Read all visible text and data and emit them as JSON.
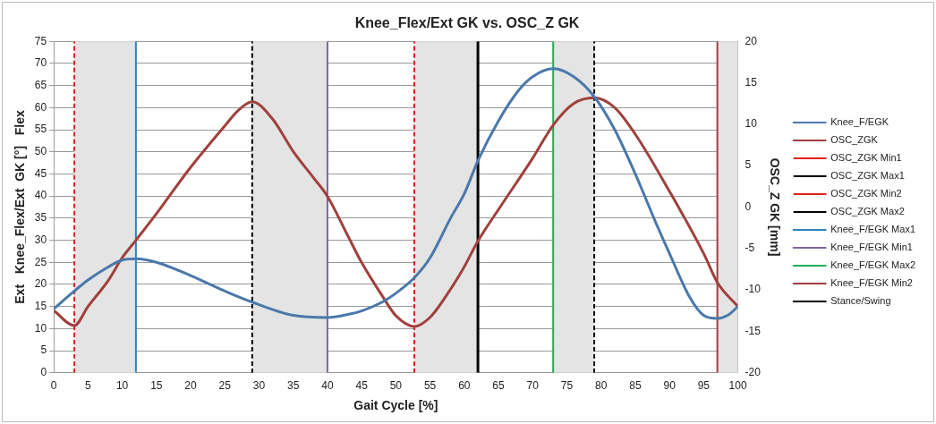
{
  "chart_data": {
    "type": "line",
    "title": "Knee_Flex/Ext GK vs. OSC_Z GK",
    "xlabel": "Gait Cycle [%]",
    "ylabel": "Ext   Knee_Flex/Ext  GK [°]   Flex",
    "y2label": "OSC_Z GK [mm]",
    "xlim": [
      0,
      100
    ],
    "xticks": [
      0,
      5,
      10,
      15,
      20,
      25,
      30,
      35,
      40,
      45,
      50,
      55,
      60,
      65,
      70,
      75,
      80,
      85,
      90,
      95,
      100
    ],
    "ylim": [
      0,
      75
    ],
    "yticks": [
      0,
      5,
      10,
      15,
      20,
      25,
      30,
      35,
      40,
      45,
      50,
      55,
      60,
      65,
      70,
      75
    ],
    "y2lim": [
      -20,
      20
    ],
    "y2ticks": [
      -20,
      -15,
      -10,
      -5,
      0,
      5,
      10,
      15,
      20
    ],
    "grid": "y",
    "legend": "right",
    "marker": "none",
    "bands": [
      {
        "axis": "x",
        "from": 3,
        "to": 12,
        "color": "#e4e4e4"
      },
      {
        "axis": "x",
        "from": 29,
        "to": 40,
        "color": "#e4e4e4"
      },
      {
        "axis": "x",
        "from": 52.7,
        "to": 62,
        "color": "#e4e4e4"
      },
      {
        "axis": "x",
        "from": 73,
        "to": 79,
        "color": "#e4e4e4"
      },
      {
        "axis": "x",
        "from": 97,
        "to": 100,
        "color": "#e4e4e4"
      }
    ],
    "series": [
      {
        "name": "Knee_F/EGK",
        "color": "#4a78ab",
        "line_style": "solid",
        "x": [
          0,
          3,
          5,
          8,
          10,
          12,
          15,
          20,
          25,
          29,
          35,
          40,
          43,
          45,
          48,
          50,
          52.7,
          55,
          58,
          60,
          62,
          65,
          68,
          70,
          73,
          76,
          79,
          82,
          85,
          88,
          90,
          93,
          95,
          97,
          98.5,
          100
        ],
        "values": [
          14.5,
          18.5,
          21,
          24,
          25.5,
          25.8,
          25,
          22,
          18.5,
          16,
          13,
          12.5,
          13.2,
          14,
          16,
          18,
          21.5,
          26,
          35,
          40.5,
          48,
          57,
          64,
          67,
          68.8,
          67,
          62.5,
          55,
          45,
          34,
          27,
          17,
          13,
          12.3,
          13,
          15
        ]
      },
      {
        "name": "OSC_ZGK",
        "color": "#a0403c",
        "line_style": "solid",
        "axis": "y2",
        "x": [
          0,
          3,
          5,
          8,
          10,
          12,
          15,
          20,
          25,
          27,
          29,
          32,
          35,
          38,
          40,
          43,
          45,
          48,
          50,
          52.7,
          55,
          58,
          60,
          62,
          65,
          70,
          73,
          76,
          79,
          82,
          85,
          90,
          95,
          97,
          100
        ],
        "values": [
          -12.5,
          -14.3,
          -12,
          -8.8,
          -6.1,
          -4,
          -0.8,
          4.8,
          9.8,
          11.7,
          12.7,
          10.6,
          6.7,
          3.5,
          1.3,
          -3.5,
          -6.7,
          -10.7,
          -13.1,
          -14.4,
          -13.3,
          -9.9,
          -7.2,
          -4.1,
          -0.3,
          5.9,
          9.9,
          12.5,
          13.2,
          12,
          8.8,
          1.9,
          -5.6,
          -9.1,
          -12
        ]
      },
      {
        "name": "OSC_ZGK Min1",
        "color": "#e02020",
        "line_style": "dashed",
        "x": [
          3,
          3
        ],
        "values": [
          0,
          75
        ]
      },
      {
        "name": "OSC_ZGK Max1",
        "color": "#000000",
        "line_style": "dashed",
        "x": [
          29,
          29
        ],
        "values": [
          0,
          75
        ]
      },
      {
        "name": "OSC_ZGK Min2",
        "color": "#e02020",
        "line_style": "dashed",
        "x": [
          52.7,
          52.7
        ],
        "values": [
          0,
          75
        ]
      },
      {
        "name": "OSC_ZGK Max2",
        "color": "#000000",
        "line_style": "dashed",
        "x": [
          79,
          79
        ],
        "values": [
          0,
          75
        ]
      },
      {
        "name": "Knee_F/EGK Max1",
        "color": "#2a86c0",
        "line_style": "solid",
        "x": [
          12,
          12
        ],
        "values": [
          0,
          75
        ]
      },
      {
        "name": "Knee_F/EGK Min1",
        "color": "#8064a2",
        "line_style": "solid",
        "x": [
          40,
          40
        ],
        "values": [
          0,
          75
        ]
      },
      {
        "name": "Knee_F/EGK Max2",
        "color": "#1fae55",
        "line_style": "solid",
        "x": [
          73,
          73
        ],
        "values": [
          0,
          75
        ]
      },
      {
        "name": "Knee_F/EGK Min2",
        "color": "#a0403c",
        "line_style": "solid",
        "x": [
          97,
          97
        ],
        "values": [
          0,
          75
        ]
      },
      {
        "name": "Stance/Swing",
        "color": "#000000",
        "line_style": "solid",
        "x": [
          62,
          62
        ],
        "values": [
          0,
          75
        ]
      }
    ]
  }
}
